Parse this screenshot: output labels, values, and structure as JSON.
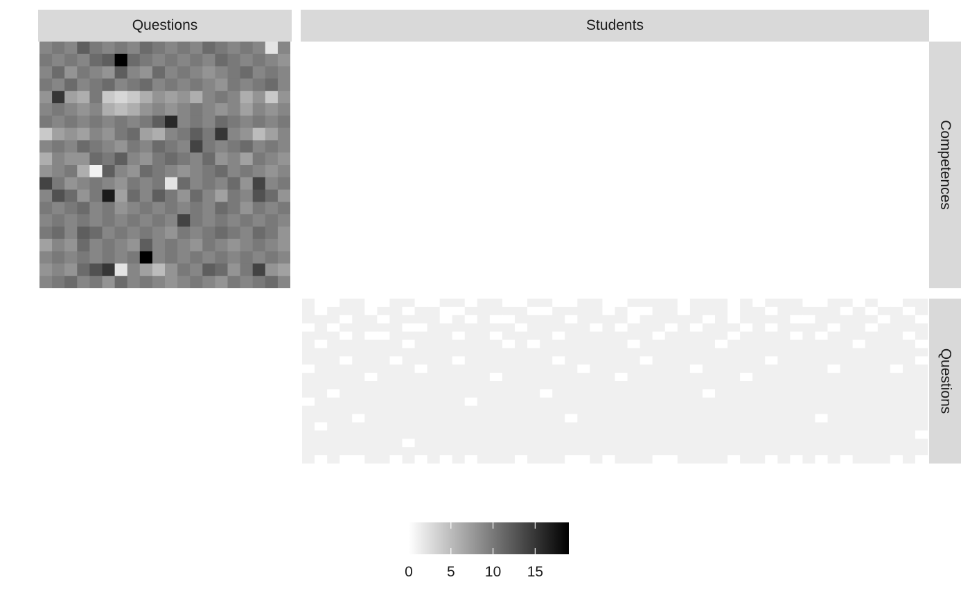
{
  "facets": {
    "col_labels": [
      "Questions",
      "Students"
    ],
    "row_labels": [
      "Competences",
      "Questions"
    ]
  },
  "legend": {
    "tick_labels": [
      "0",
      "5",
      "10",
      "15"
    ],
    "ticks": [
      0,
      5,
      10,
      15
    ],
    "range": [
      0,
      19
    ],
    "colors": {
      "low": "#ffffff",
      "high": "#000000"
    }
  },
  "chart_data": [
    {
      "type": "heatmap",
      "panel": "Competences x Questions",
      "nrows": 20,
      "ncols": 20,
      "values": [
        [
          9,
          10,
          9,
          12,
          10,
          9,
          10,
          9,
          11,
          10,
          9,
          10,
          9,
          11,
          10,
          9,
          10,
          9,
          2,
          9
        ],
        [
          10,
          9,
          10,
          9,
          11,
          12,
          19,
          11,
          10,
          9,
          10,
          9,
          10,
          9,
          11,
          10,
          9,
          10,
          9,
          8
        ],
        [
          9,
          11,
          8,
          10,
          9,
          8,
          12,
          9,
          8,
          11,
          9,
          10,
          9,
          8,
          9,
          10,
          11,
          9,
          10,
          9
        ],
        [
          10,
          9,
          11,
          9,
          10,
          11,
          9,
          10,
          11,
          9,
          10,
          9,
          10,
          9,
          8,
          10,
          9,
          10,
          11,
          9
        ],
        [
          8,
          15,
          7,
          6,
          10,
          4,
          3,
          4,
          6,
          8,
          7,
          8,
          6,
          9,
          10,
          9,
          6,
          8,
          4,
          8
        ],
        [
          9,
          10,
          9,
          8,
          9,
          6,
          5,
          6,
          8,
          9,
          8,
          9,
          10,
          9,
          8,
          9,
          7,
          9,
          8,
          9
        ],
        [
          10,
          9,
          10,
          9,
          10,
          9,
          10,
          9,
          10,
          12,
          16,
          9,
          10,
          9,
          11,
          10,
          9,
          10,
          9,
          10
        ],
        [
          4,
          7,
          8,
          7,
          9,
          8,
          10,
          11,
          7,
          6,
          9,
          10,
          12,
          10,
          15,
          9,
          8,
          5,
          7,
          9
        ],
        [
          9,
          10,
          9,
          11,
          10,
          9,
          8,
          10,
          9,
          11,
          10,
          9,
          14,
          10,
          9,
          10,
          11,
          9,
          10,
          9
        ],
        [
          6,
          9,
          8,
          8,
          11,
          10,
          12,
          9,
          8,
          10,
          11,
          10,
          9,
          11,
          8,
          9,
          7,
          10,
          9,
          8
        ],
        [
          8,
          9,
          10,
          6,
          1,
          12,
          9,
          8,
          11,
          10,
          9,
          8,
          9,
          10,
          11,
          9,
          10,
          9,
          8,
          9
        ],
        [
          14,
          10,
          8,
          9,
          10,
          9,
          8,
          10,
          9,
          10,
          2,
          11,
          9,
          10,
          9,
          11,
          8,
          14,
          9,
          10
        ],
        [
          9,
          13,
          11,
          8,
          10,
          17,
          7,
          11,
          9,
          12,
          10,
          8,
          11,
          9,
          7,
          10,
          9,
          13,
          11,
          8
        ],
        [
          10,
          9,
          10,
          11,
          9,
          10,
          8,
          9,
          10,
          9,
          10,
          9,
          10,
          9,
          11,
          10,
          8,
          10,
          9,
          10
        ],
        [
          9,
          10,
          9,
          10,
          9,
          10,
          9,
          10,
          9,
          10,
          9,
          14,
          10,
          9,
          10,
          9,
          10,
          9,
          10,
          9
        ],
        [
          10,
          11,
          9,
          12,
          11,
          9,
          10,
          9,
          10,
          9,
          8,
          10,
          9,
          10,
          11,
          10,
          9,
          11,
          10,
          8
        ],
        [
          7,
          9,
          8,
          11,
          9,
          10,
          9,
          8,
          12,
          9,
          10,
          9,
          8,
          10,
          9,
          8,
          9,
          10,
          9,
          8
        ],
        [
          9,
          10,
          9,
          10,
          9,
          10,
          9,
          10,
          19,
          9,
          10,
          9,
          10,
          9,
          10,
          9,
          10,
          9,
          10,
          9
        ],
        [
          8,
          9,
          8,
          11,
          13,
          15,
          2,
          9,
          7,
          5,
          8,
          10,
          9,
          12,
          11,
          8,
          10,
          14,
          8,
          7
        ],
        [
          9,
          10,
          11,
          9,
          10,
          8,
          11,
          9,
          10,
          9,
          8,
          9,
          10,
          9,
          8,
          10,
          9,
          10,
          11,
          9
        ]
      ]
    },
    {
      "type": "heatmap",
      "panel": "Questions x Students",
      "nrows": 20,
      "ncols": 50,
      "value_levels": [
        0,
        1
      ],
      "values": [
        [
          1,
          0,
          0,
          1,
          1,
          0,
          0,
          1,
          1,
          0,
          0,
          1,
          1,
          0,
          1,
          1,
          0,
          0,
          1,
          1,
          0,
          0,
          1,
          1,
          0,
          0,
          1,
          1,
          1,
          1,
          0,
          1,
          1,
          1,
          0,
          1,
          0,
          1,
          1,
          1,
          0,
          0,
          1,
          1,
          0,
          1,
          0,
          0,
          1,
          1
        ],
        [
          1,
          0,
          1,
          1,
          1,
          0,
          1,
          1,
          0,
          1,
          1,
          0,
          0,
          1,
          1,
          1,
          1,
          1,
          0,
          0,
          1,
          1,
          1,
          1,
          0,
          1,
          0,
          0,
          1,
          1,
          0,
          1,
          1,
          1,
          0,
          1,
          1,
          0,
          1,
          1,
          1,
          1,
          1,
          0,
          1,
          0,
          1,
          1,
          0,
          1
        ],
        [
          1,
          1,
          1,
          0,
          1,
          1,
          0,
          1,
          1,
          1,
          1,
          0,
          1,
          0,
          1,
          0,
          0,
          1,
          1,
          1,
          1,
          0,
          1,
          1,
          1,
          1,
          0,
          1,
          1,
          1,
          1,
          1,
          0,
          1,
          0,
          1,
          1,
          1,
          1,
          0,
          0,
          1,
          1,
          1,
          1,
          1,
          0,
          1,
          1,
          0
        ],
        [
          0,
          1,
          0,
          1,
          1,
          1,
          1,
          1,
          0,
          0,
          1,
          1,
          1,
          1,
          1,
          1,
          1,
          0,
          1,
          1,
          1,
          1,
          1,
          0,
          1,
          0,
          1,
          1,
          1,
          0,
          1,
          0,
          1,
          1,
          1,
          0,
          1,
          0,
          1,
          1,
          1,
          1,
          0,
          1,
          1,
          0,
          1,
          1,
          1,
          1
        ],
        [
          1,
          1,
          1,
          0,
          1,
          0,
          0,
          1,
          1,
          1,
          1,
          1,
          0,
          1,
          1,
          0,
          1,
          1,
          1,
          1,
          0,
          1,
          1,
          1,
          1,
          1,
          1,
          1,
          0,
          1,
          1,
          1,
          1,
          1,
          0,
          1,
          1,
          1,
          1,
          0,
          1,
          0,
          1,
          1,
          1,
          1,
          1,
          1,
          0,
          1
        ],
        [
          1,
          0,
          1,
          1,
          1,
          1,
          1,
          1,
          0,
          1,
          1,
          1,
          1,
          1,
          1,
          1,
          0,
          1,
          0,
          1,
          1,
          1,
          1,
          1,
          1,
          1,
          0,
          1,
          1,
          1,
          1,
          1,
          1,
          0,
          1,
          1,
          1,
          1,
          1,
          1,
          1,
          1,
          1,
          1,
          0,
          1,
          1,
          1,
          1,
          0
        ],
        [
          1,
          1,
          1,
          1,
          1,
          1,
          1,
          1,
          1,
          1,
          1,
          1,
          1,
          1,
          1,
          1,
          1,
          1,
          1,
          1,
          1,
          1,
          1,
          1,
          1,
          1,
          1,
          1,
          1,
          1,
          1,
          1,
          1,
          1,
          1,
          1,
          1,
          1,
          1,
          1,
          1,
          1,
          1,
          1,
          1,
          1,
          1,
          1,
          1,
          1
        ],
        [
          1,
          1,
          1,
          0,
          1,
          1,
          1,
          0,
          1,
          1,
          1,
          1,
          0,
          1,
          1,
          1,
          1,
          1,
          1,
          1,
          0,
          1,
          1,
          1,
          1,
          1,
          1,
          0,
          1,
          1,
          1,
          1,
          1,
          1,
          1,
          1,
          1,
          0,
          1,
          1,
          1,
          1,
          1,
          1,
          1,
          1,
          1,
          1,
          1,
          0
        ],
        [
          0,
          1,
          1,
          1,
          1,
          1,
          1,
          1,
          1,
          0,
          1,
          1,
          1,
          1,
          1,
          1,
          1,
          1,
          1,
          1,
          1,
          1,
          0,
          1,
          1,
          1,
          1,
          1,
          1,
          1,
          1,
          0,
          1,
          1,
          1,
          1,
          1,
          1,
          1,
          1,
          1,
          1,
          0,
          1,
          1,
          1,
          1,
          0,
          1,
          1
        ],
        [
          1,
          1,
          1,
          1,
          1,
          0,
          1,
          1,
          1,
          1,
          1,
          1,
          1,
          1,
          1,
          0,
          1,
          1,
          1,
          1,
          1,
          1,
          1,
          1,
          1,
          0,
          1,
          1,
          1,
          1,
          1,
          1,
          1,
          1,
          1,
          0,
          1,
          1,
          1,
          1,
          1,
          1,
          1,
          1,
          1,
          1,
          1,
          1,
          1,
          1
        ],
        [
          1,
          1,
          1,
          1,
          1,
          1,
          1,
          1,
          1,
          1,
          1,
          1,
          1,
          1,
          1,
          1,
          1,
          1,
          1,
          1,
          1,
          1,
          1,
          1,
          1,
          1,
          1,
          1,
          1,
          1,
          1,
          1,
          1,
          1,
          1,
          1,
          1,
          1,
          1,
          1,
          1,
          1,
          1,
          1,
          1,
          1,
          1,
          1,
          1,
          1
        ],
        [
          1,
          1,
          0,
          1,
          1,
          1,
          1,
          1,
          1,
          1,
          1,
          1,
          1,
          1,
          1,
          1,
          1,
          1,
          1,
          0,
          1,
          1,
          1,
          1,
          1,
          1,
          1,
          1,
          1,
          1,
          1,
          1,
          0,
          1,
          1,
          1,
          1,
          1,
          1,
          1,
          1,
          1,
          1,
          1,
          1,
          1,
          1,
          1,
          1,
          1
        ],
        [
          0,
          1,
          1,
          1,
          1,
          1,
          1,
          1,
          1,
          1,
          1,
          1,
          1,
          0,
          1,
          1,
          1,
          1,
          1,
          1,
          1,
          1,
          1,
          1,
          1,
          1,
          1,
          1,
          1,
          1,
          1,
          1,
          1,
          1,
          1,
          1,
          1,
          1,
          1,
          1,
          1,
          1,
          1,
          1,
          1,
          1,
          1,
          1,
          1,
          1
        ],
        [
          1,
          1,
          1,
          1,
          1,
          1,
          1,
          1,
          1,
          1,
          1,
          1,
          1,
          1,
          1,
          1,
          1,
          1,
          1,
          1,
          1,
          1,
          1,
          1,
          1,
          1,
          1,
          1,
          1,
          1,
          1,
          1,
          1,
          1,
          1,
          1,
          1,
          1,
          1,
          1,
          1,
          1,
          1,
          1,
          1,
          1,
          1,
          1,
          1,
          1
        ],
        [
          1,
          1,
          1,
          1,
          0,
          1,
          1,
          1,
          1,
          1,
          1,
          1,
          1,
          1,
          1,
          1,
          1,
          1,
          1,
          1,
          1,
          0,
          1,
          1,
          1,
          1,
          1,
          1,
          1,
          1,
          1,
          1,
          1,
          1,
          1,
          1,
          1,
          1,
          1,
          1,
          1,
          0,
          1,
          1,
          1,
          1,
          1,
          1,
          1,
          1
        ],
        [
          1,
          0,
          1,
          1,
          1,
          1,
          1,
          1,
          1,
          1,
          1,
          1,
          1,
          1,
          1,
          1,
          1,
          1,
          1,
          1,
          1,
          1,
          1,
          1,
          1,
          1,
          1,
          1,
          1,
          1,
          1,
          1,
          1,
          1,
          1,
          1,
          1,
          1,
          1,
          1,
          1,
          1,
          1,
          1,
          1,
          1,
          1,
          1,
          1,
          1
        ],
        [
          1,
          1,
          1,
          1,
          1,
          1,
          1,
          1,
          1,
          1,
          1,
          1,
          1,
          1,
          1,
          1,
          1,
          1,
          1,
          1,
          1,
          1,
          1,
          1,
          1,
          1,
          1,
          1,
          1,
          1,
          1,
          1,
          1,
          1,
          1,
          1,
          1,
          1,
          1,
          1,
          1,
          1,
          1,
          1,
          1,
          1,
          1,
          1,
          1,
          0
        ],
        [
          1,
          1,
          1,
          1,
          1,
          1,
          1,
          1,
          0,
          1,
          1,
          1,
          1,
          1,
          1,
          1,
          1,
          1,
          1,
          1,
          1,
          1,
          1,
          1,
          1,
          1,
          1,
          1,
          1,
          1,
          1,
          1,
          1,
          1,
          1,
          1,
          1,
          1,
          1,
          1,
          1,
          1,
          1,
          1,
          1,
          1,
          1,
          1,
          1,
          1
        ],
        [
          1,
          1,
          1,
          1,
          1,
          1,
          1,
          1,
          1,
          1,
          1,
          1,
          1,
          1,
          1,
          1,
          1,
          1,
          1,
          1,
          1,
          1,
          1,
          1,
          1,
          1,
          1,
          1,
          1,
          1,
          1,
          1,
          1,
          1,
          1,
          1,
          1,
          1,
          1,
          1,
          1,
          1,
          1,
          1,
          1,
          1,
          1,
          1,
          1,
          1
        ],
        [
          1,
          0,
          1,
          0,
          0,
          1,
          1,
          0,
          1,
          0,
          1,
          0,
          1,
          0,
          1,
          1,
          1,
          0,
          1,
          1,
          1,
          0,
          0,
          1,
          0,
          1,
          1,
          1,
          0,
          0,
          1,
          1,
          1,
          1,
          0,
          1,
          1,
          0,
          1,
          0,
          1,
          0,
          1,
          0,
          1,
          1,
          1,
          0,
          1,
          0
        ]
      ]
    }
  ]
}
